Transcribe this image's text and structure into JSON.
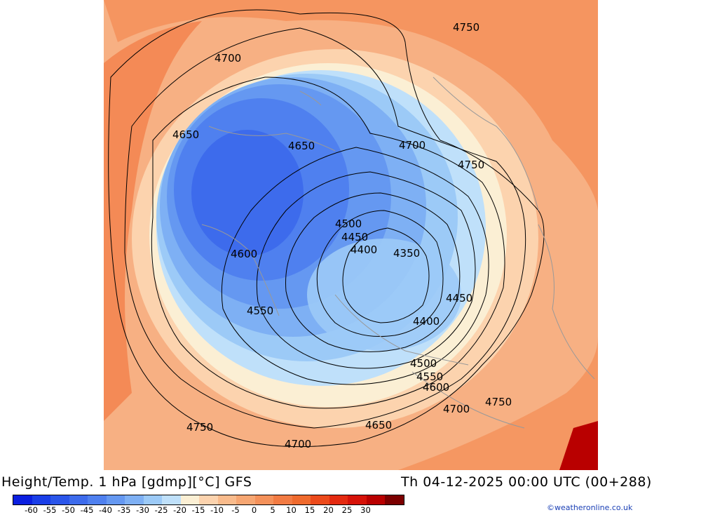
{
  "title": {
    "left": "Height/Temp. 1 hPa [gdmp][°C] GFS",
    "right": "Th 04-12-2025 00:00 UTC (00+288)"
  },
  "credit": "©weatheronline.co.uk",
  "legend": {
    "colors": [
      "#0b1fe0",
      "#1a3ee8",
      "#2a55ea",
      "#3d6bec",
      "#4f80ef",
      "#6598f1",
      "#7eb0f4",
      "#9ccaf7",
      "#bfe0fa",
      "#fbefd4",
      "#fcd3ae",
      "#f9bb8c",
      "#f6a672",
      "#f4915a",
      "#f27b43",
      "#ef6a2d",
      "#ec4a1b",
      "#e42a10",
      "#d61208",
      "#b90000",
      "#7c0000"
    ],
    "tick_labels": [
      "-60",
      "-55",
      "-50",
      "-45",
      "-40",
      "-35",
      "-30",
      "-25",
      "-20",
      "-15",
      "-10",
      "-5",
      "0",
      "5",
      "10",
      "15",
      "20",
      "25",
      "30"
    ]
  },
  "map": {
    "contour_labels": [
      "4750",
      "4700",
      "4650",
      "4650",
      "4700",
      "4750",
      "4500",
      "4450",
      "4400",
      "4350",
      "4600",
      "4450",
      "4550",
      "4400",
      "4500",
      "4550",
      "4600",
      "4750",
      "4700",
      "4650",
      "4750",
      "4700"
    ]
  }
}
